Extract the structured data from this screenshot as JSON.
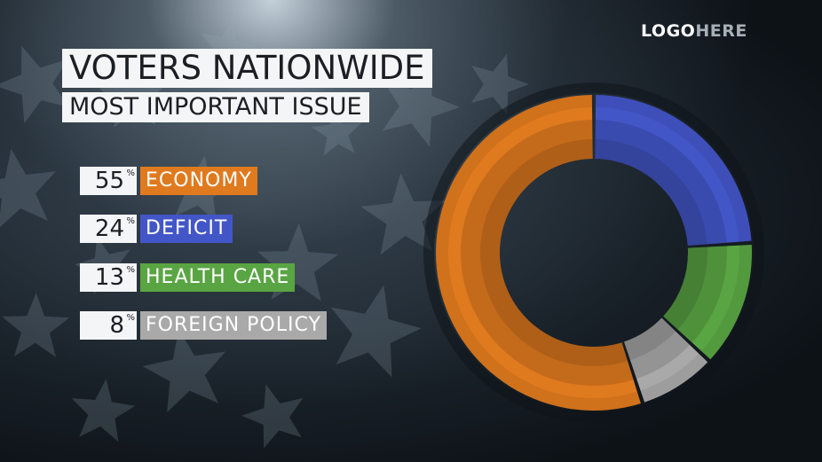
{
  "logo": {
    "part1": "LOGO",
    "part2": "HERE"
  },
  "header": {
    "title": "VOTERS NATIONWIDE",
    "subtitle": "MOST IMPORTANT ISSUE"
  },
  "chart_data": {
    "type": "pie",
    "variant": "donut",
    "title": "VOTERS NATIONWIDE",
    "subtitle": "MOST IMPORTANT ISSUE",
    "unit": "%",
    "categories": [
      "ECONOMY",
      "DEFICIT",
      "HEALTH CARE",
      "FOREIGN POLICY"
    ],
    "values": [
      55,
      24,
      13,
      8
    ],
    "value_labels": [
      "55",
      "24",
      "13",
      "8"
    ],
    "percent_sign": "%",
    "colors": [
      "#e07a1f",
      "#4356c8",
      "#5aa543",
      "#a9a9a9"
    ],
    "legend_placement": "left"
  }
}
